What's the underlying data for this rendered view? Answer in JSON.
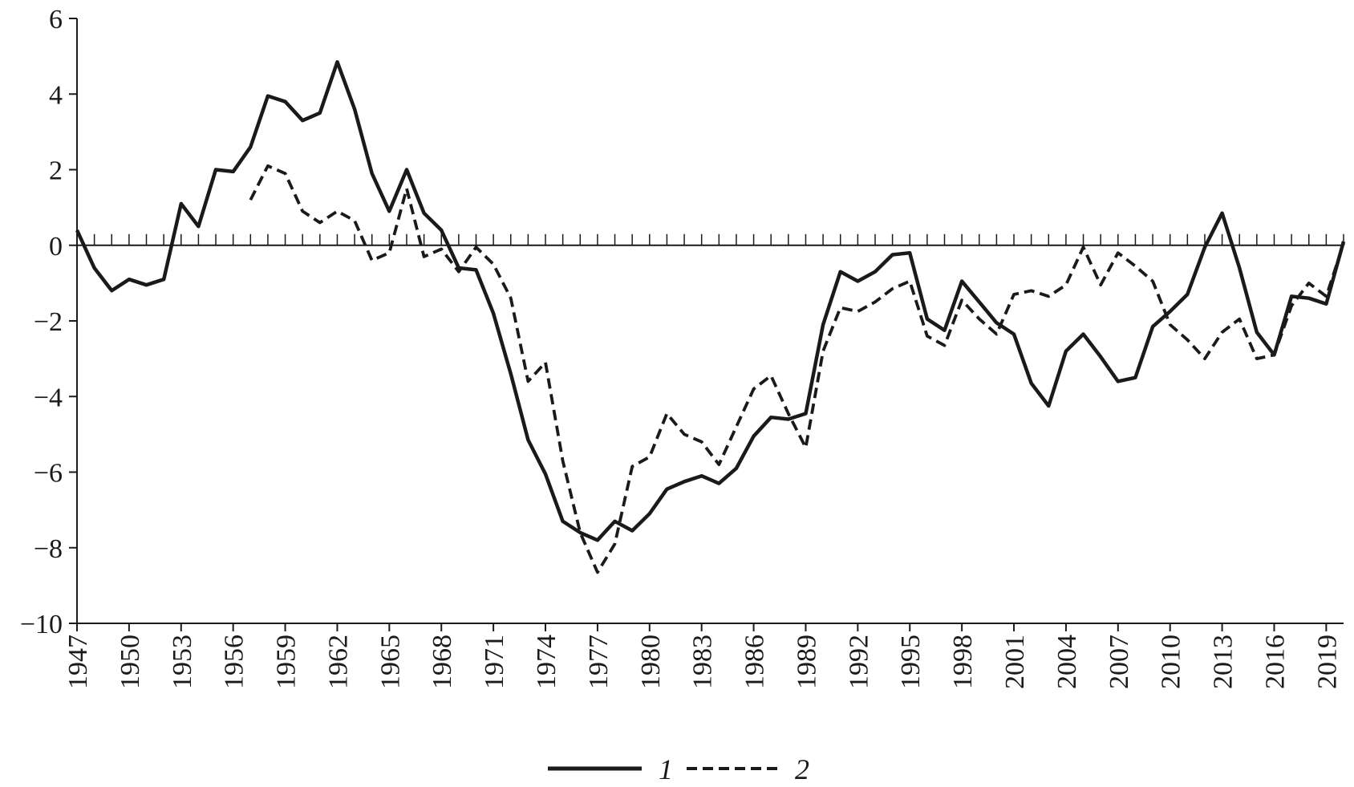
{
  "chart_data": {
    "type": "line",
    "title": "",
    "xlabel": "",
    "ylabel": "",
    "xlim": [
      1947,
      2020
    ],
    "ylim": [
      -10,
      6
    ],
    "grid": false,
    "legend_position": "bottom-center",
    "y_ticks": [
      6,
      4,
      2,
      0,
      -2,
      -4,
      -6,
      -8,
      -10
    ],
    "y_tick_labels": [
      "6",
      "4",
      "2",
      "0",
      "−2",
      "−4",
      "−6",
      "−8",
      "−10"
    ],
    "x_ticks": [
      1947,
      1950,
      1953,
      1956,
      1959,
      1962,
      1965,
      1968,
      1971,
      1974,
      1977,
      1980,
      1983,
      1986,
      1989,
      1992,
      1995,
      1998,
      2001,
      2004,
      2007,
      2010,
      2013,
      2016,
      2019
    ],
    "x_tick_labels": [
      "1947",
      "1950",
      "1953",
      "1956",
      "1959",
      "1962",
      "1965",
      "1968",
      "1971",
      "1974",
      "1977",
      "1980",
      "1983",
      "1986",
      "1989",
      "1992",
      "1995",
      "1998",
      "2001",
      "2004",
      "2007",
      "2010",
      "2013",
      "2016",
      "2019"
    ],
    "series": [
      {
        "name": "1",
        "style": "solid",
        "color": "#1a1a1a",
        "x": [
          1947,
          1948,
          1949,
          1950,
          1951,
          1952,
          1953,
          1954,
          1955,
          1956,
          1957,
          1958,
          1959,
          1960,
          1961,
          1962,
          1963,
          1964,
          1965,
          1966,
          1967,
          1968,
          1969,
          1970,
          1971,
          1972,
          1973,
          1974,
          1975,
          1976,
          1977,
          1978,
          1979,
          1980,
          1981,
          1982,
          1983,
          1984,
          1985,
          1986,
          1987,
          1988,
          1989,
          1990,
          1991,
          1992,
          1993,
          1994,
          1995,
          1996,
          1997,
          1998,
          1999,
          2000,
          2001,
          2002,
          2003,
          2004,
          2005,
          2006,
          2007,
          2008,
          2009,
          2010,
          2011,
          2012,
          2013,
          2014,
          2015,
          2016,
          2017,
          2018,
          2019,
          2020
        ],
        "y": [
          0.4,
          -0.6,
          -1.2,
          -0.9,
          -1.05,
          -0.9,
          1.1,
          0.5,
          2.0,
          1.95,
          2.6,
          3.95,
          3.8,
          3.3,
          3.5,
          4.85,
          3.6,
          1.9,
          0.9,
          2.0,
          0.85,
          0.4,
          -0.6,
          -0.65,
          -1.8,
          -3.4,
          -5.15,
          -6.05,
          -7.3,
          -7.6,
          -7.8,
          -7.3,
          -7.55,
          -7.1,
          -6.45,
          -6.25,
          -6.1,
          -6.3,
          -5.9,
          -5.05,
          -4.55,
          -4.6,
          -4.45,
          -2.1,
          -0.7,
          -0.95,
          -0.7,
          -0.25,
          -0.2,
          -1.95,
          -2.25,
          -0.95,
          -1.5,
          -2.05,
          -2.35,
          -3.65,
          -4.25,
          -2.8,
          -2.35,
          -2.95,
          -3.6,
          -3.5,
          -2.15,
          -1.75,
          -1.3,
          -0.05,
          0.85,
          -0.6,
          -2.3,
          -2.9,
          -1.35,
          -1.4,
          -1.55,
          0.1
        ]
      },
      {
        "name": "2",
        "style": "dashed",
        "color": "#1a1a1a",
        "x": [
          1957,
          1958,
          1959,
          1960,
          1961,
          1962,
          1963,
          1964,
          1965,
          1966,
          1967,
          1968,
          1969,
          1970,
          1971,
          1972,
          1973,
          1974,
          1975,
          1976,
          1977,
          1978,
          1979,
          1980,
          1981,
          1982,
          1983,
          1984,
          1985,
          1986,
          1987,
          1988,
          1989,
          1990,
          1991,
          1992,
          1993,
          1994,
          1995,
          1996,
          1997,
          1998,
          1999,
          2000,
          2001,
          2002,
          2003,
          2004,
          2005,
          2006,
          2007,
          2008,
          2009,
          2010,
          2011,
          2012,
          2013,
          2014,
          2015,
          2016,
          2017,
          2018,
          2019,
          2020
        ],
        "y": [
          1.2,
          2.1,
          1.9,
          0.9,
          0.6,
          0.9,
          0.65,
          -0.4,
          -0.2,
          1.5,
          -0.3,
          -0.1,
          -0.7,
          -0.05,
          -0.5,
          -1.4,
          -3.6,
          -3.1,
          -5.7,
          -7.6,
          -8.65,
          -7.9,
          -5.85,
          -5.6,
          -4.45,
          -5.0,
          -5.2,
          -5.8,
          -4.8,
          -3.8,
          -3.45,
          -4.45,
          -5.35,
          -2.8,
          -1.65,
          -1.75,
          -1.5,
          -1.15,
          -0.95,
          -2.4,
          -2.65,
          -1.45,
          -1.95,
          -2.35,
          -1.3,
          -1.2,
          -1.35,
          -1.05,
          -0.05,
          -1.05,
          -0.2,
          -0.55,
          -0.95,
          -2.1,
          -2.5,
          -3.0,
          -2.3,
          -1.95,
          -3.0,
          -2.9,
          -1.6,
          -1.0,
          -1.35,
          0.05
        ]
      }
    ],
    "legend": [
      {
        "label": "1",
        "style": "solid"
      },
      {
        "label": "2",
        "style": "dashed"
      }
    ]
  }
}
